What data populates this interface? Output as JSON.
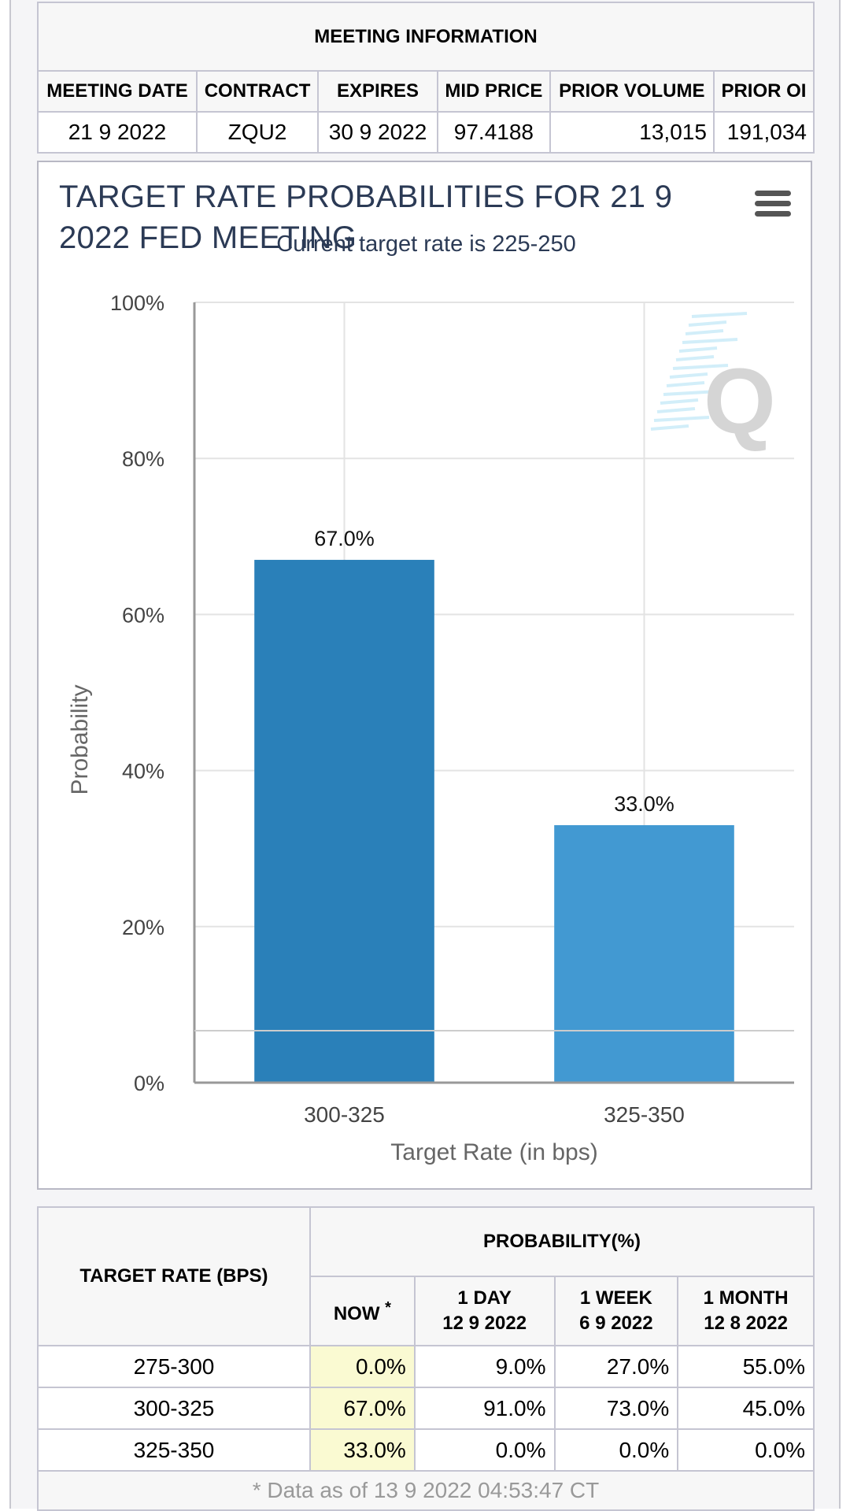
{
  "meeting_info": {
    "title": "MEETING INFORMATION",
    "headers": [
      "MEETING DATE",
      "CONTRACT",
      "EXPIRES",
      "MID PRICE",
      "PRIOR VOLUME",
      "PRIOR OI"
    ],
    "values": [
      "21 9 2022",
      "ZQU2",
      "30 9 2022",
      "97.4188",
      "13,015",
      "191,034"
    ]
  },
  "chart": {
    "menu_icon": "hamburger-menu-icon",
    "watermark_icon": "q-logo-icon",
    "colors": {
      "bar1": "#2a80b9",
      "bar2": "#4299d2",
      "title": "#2b3a55"
    }
  },
  "chart_data": {
    "type": "bar",
    "title": "TARGET RATE PROBABILITIES FOR 21 9 2022 FED MEETING",
    "subtitle": "Current target rate is 225-250",
    "categories": [
      "300-325",
      "325-350"
    ],
    "values": [
      67.0,
      33.0
    ],
    "data_labels": [
      "67.0%",
      "33.0%"
    ],
    "xlabel": "Target Rate (in bps)",
    "ylabel": "Probability",
    "ylim": [
      0,
      100
    ],
    "yticks": [
      "0%",
      "20%",
      "40%",
      "60%",
      "80%",
      "100%"
    ],
    "grid": true,
    "legend": "none"
  },
  "probability_table": {
    "rate_header": "TARGET RATE (BPS)",
    "prob_header": "PROBABILITY(%)",
    "col_now": "NOW",
    "col_now_mark": "*",
    "col_day": [
      "1 DAY",
      "12 9 2022"
    ],
    "col_week": [
      "1 WEEK",
      "6 9 2022"
    ],
    "col_month": [
      "1 MONTH",
      "12 8 2022"
    ],
    "rows": [
      {
        "rate": "275-300",
        "now": "0.0%",
        "day": "9.0%",
        "week": "27.0%",
        "month": "55.0%"
      },
      {
        "rate": "300-325",
        "now": "67.0%",
        "day": "91.0%",
        "week": "73.0%",
        "month": "45.0%"
      },
      {
        "rate": "325-350",
        "now": "33.0%",
        "day": "0.0%",
        "week": "0.0%",
        "month": "0.0%"
      }
    ],
    "footnote": "* Data as of 13 9 2022 04:53:47 CT"
  }
}
